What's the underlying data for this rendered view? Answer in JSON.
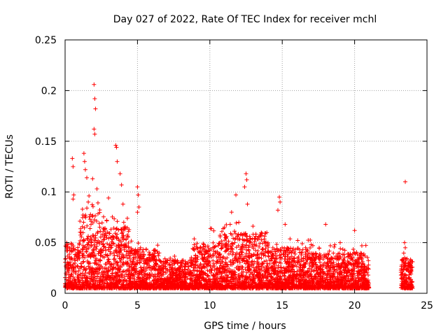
{
  "chart_data": {
    "type": "scatter",
    "title": "Day 027 of 2022, Rate Of TEC Index for receiver mchl",
    "xlabel": "GPS time / hours",
    "ylabel": "ROTI / TECUs",
    "xlim": [
      0,
      25
    ],
    "ylim": [
      0,
      0.25
    ],
    "x_ticks": [
      "0",
      "5",
      "10",
      "15",
      "20",
      "25"
    ],
    "y_ticks": [
      "0",
      "0.05",
      "0.1",
      "0.15",
      "0.2",
      "0.25"
    ],
    "grid": true,
    "marker": "plus",
    "color": "#ff0000",
    "series": [
      {
        "values": [
          [
            0.5,
            0.133
          ],
          [
            0.55,
            0.125
          ],
          [
            0.6,
            0.097
          ],
          [
            0.55,
            0.093
          ],
          [
            1.3,
            0.138
          ],
          [
            1.35,
            0.13
          ],
          [
            1.4,
            0.122
          ],
          [
            1.5,
            0.114
          ],
          [
            1.2,
            0.083
          ],
          [
            1.6,
            0.09
          ],
          [
            2.0,
            0.206
          ],
          [
            2.05,
            0.192
          ],
          [
            2.1,
            0.182
          ],
          [
            2.0,
            0.162
          ],
          [
            2.05,
            0.157
          ],
          [
            1.9,
            0.113
          ],
          [
            2.2,
            0.103
          ],
          [
            3.5,
            0.146
          ],
          [
            3.55,
            0.144
          ],
          [
            3.6,
            0.13
          ],
          [
            3.8,
            0.118
          ],
          [
            3.9,
            0.107
          ],
          [
            3.0,
            0.094
          ],
          [
            4.0,
            0.088
          ],
          [
            4.3,
            0.074
          ],
          [
            5.0,
            0.105
          ],
          [
            5.05,
            0.097
          ],
          [
            5.1,
            0.085
          ],
          [
            5.0,
            0.08
          ],
          [
            11.8,
            0.097
          ],
          [
            11.5,
            0.08
          ],
          [
            12.5,
            0.118
          ],
          [
            12.55,
            0.112
          ],
          [
            12.4,
            0.105
          ],
          [
            12.6,
            0.088
          ],
          [
            12.0,
            0.07
          ],
          [
            14.8,
            0.095
          ],
          [
            14.85,
            0.09
          ],
          [
            14.7,
            0.082
          ],
          [
            15.2,
            0.068
          ],
          [
            17.0,
            0.048
          ],
          [
            18.0,
            0.068
          ],
          [
            19.0,
            0.05
          ],
          [
            20.0,
            0.062
          ],
          [
            20.5,
            0.047
          ],
          [
            23.5,
            0.11
          ],
          [
            23.45,
            0.05
          ],
          [
            23.5,
            0.045
          ]
        ]
      }
    ],
    "density_bands": [
      {
        "x": [
          0,
          1
        ],
        "base_max": 0.045,
        "spikes": 0.06
      },
      {
        "x": [
          1,
          2.6
        ],
        "base_max": 0.075,
        "spikes": 0.1
      },
      {
        "x": [
          2.6,
          4.6
        ],
        "base_max": 0.06,
        "spikes": 0.08
      },
      {
        "x": [
          4.6,
          6.5
        ],
        "base_max": 0.04,
        "spikes": 0.05
      },
      {
        "x": [
          6.5,
          8.8
        ],
        "base_max": 0.028,
        "spikes": 0.038
      },
      {
        "x": [
          8.8,
          11
        ],
        "base_max": 0.045,
        "spikes": 0.065
      },
      {
        "x": [
          11,
          14
        ],
        "base_max": 0.055,
        "spikes": 0.07
      },
      {
        "x": [
          14,
          17
        ],
        "base_max": 0.04,
        "spikes": 0.055
      },
      {
        "x": [
          17,
          21
        ],
        "base_max": 0.035,
        "spikes": 0.05
      },
      {
        "x": [
          23.2,
          24
        ],
        "base_max": 0.03,
        "spikes": 0.04
      }
    ]
  }
}
